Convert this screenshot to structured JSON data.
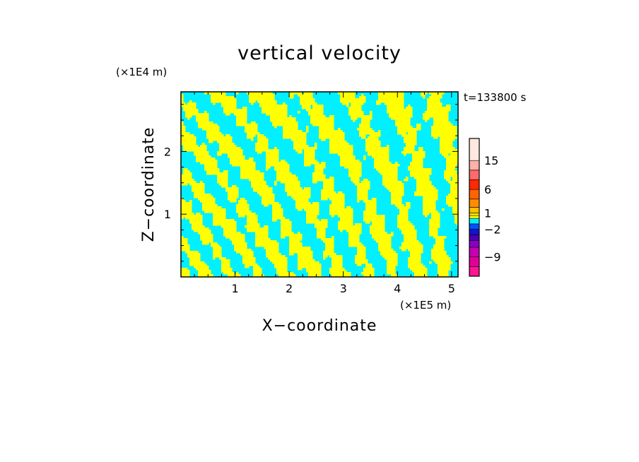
{
  "chart_data": {
    "type": "heatmap",
    "title": "vertical velocity",
    "xlabel": "X−coordinate",
    "ylabel": "Z−coordinate",
    "x_unit": "(×1E5 m)",
    "y_unit": "(×1E4 m)",
    "time_label": "t=133800 s",
    "xlim": [
      0,
      5.12
    ],
    "ylim": [
      0,
      2.95
    ],
    "x_ticks": [
      1,
      2,
      3,
      4,
      5
    ],
    "y_ticks": [
      1,
      2
    ],
    "colorbar": {
      "tick_labels": [
        "15",
        "6",
        "1",
        "−2",
        "−9"
      ],
      "tick_values": [
        15,
        6,
        1,
        -2,
        -9
      ],
      "levels": [
        {
          "color": "#ff1493",
          "lower": -15,
          "upper": -12
        },
        {
          "color": "#e00098",
          "lower": -12,
          "upper": -9
        },
        {
          "color": "#c400b0",
          "lower": -9,
          "upper": -6
        },
        {
          "color": "#8a00c8",
          "lower": -6,
          "upper": -4
        },
        {
          "color": "#4b00b4",
          "lower": -4,
          "upper": -3
        },
        {
          "color": "#1414c8",
          "lower": -3,
          "upper": -2
        },
        {
          "color": "#0050ff",
          "lower": -2,
          "upper": -1
        },
        {
          "color": "#00f0ff",
          "lower": -1,
          "upper": 0
        },
        {
          "color": "#ffff00",
          "lower": 0,
          "upper": 0.5
        },
        {
          "color": "#ffe000",
          "lower": 0.5,
          "upper": 1
        },
        {
          "color": "#ffc000",
          "lower": 1,
          "upper": 2
        },
        {
          "color": "#ff8c00",
          "lower": 2,
          "upper": 4
        },
        {
          "color": "#ff6400",
          "lower": 4,
          "upper": 6
        },
        {
          "color": "#ff2800",
          "lower": 6,
          "upper": 9
        },
        {
          "color": "#ff6a6a",
          "lower": 9,
          "upper": 12
        },
        {
          "color": "#ffb0a8",
          "lower": 12,
          "upper": 15
        },
        {
          "color": "#ffe8e0",
          "lower": 15,
          "upper": 20
        }
      ]
    },
    "field_colors": {
      "positive": "#ffff00",
      "negative": "#00f0ff"
    }
  }
}
